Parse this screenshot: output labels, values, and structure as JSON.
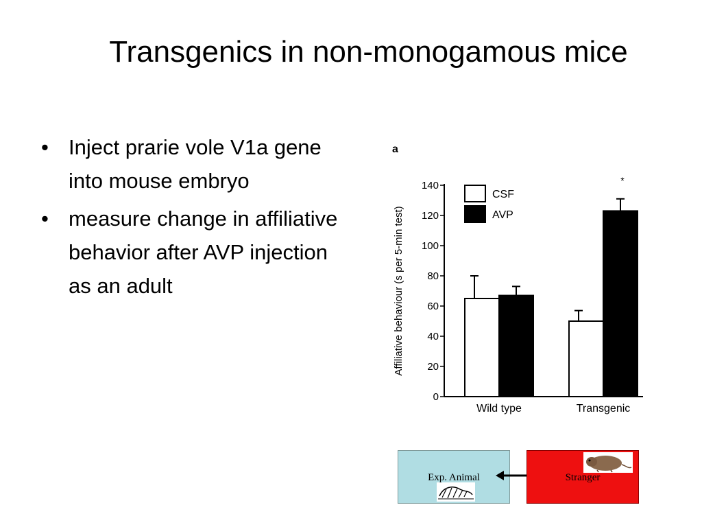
{
  "slide": {
    "title": "Transgenics in non-monogamous mice",
    "bullets": [
      "Inject prarie vole V1a gene into mouse embryo",
      "measure change in affiliative behavior after AVP injection as an adult"
    ],
    "bullet_glyph": "•"
  },
  "chart_data": {
    "type": "bar",
    "panel_label": "a",
    "categories": [
      "Wild type",
      "Transgenic"
    ],
    "series": [
      {
        "name": "CSF",
        "values": [
          65,
          50
        ],
        "errors": [
          15,
          7
        ],
        "color": "#ffffff"
      },
      {
        "name": "AVP",
        "values": [
          67,
          123
        ],
        "errors": [
          6,
          8
        ],
        "color": "#000000"
      }
    ],
    "ylabel": "Affiliative behaviour (s per 5-min test)",
    "xlabel": "",
    "ylim": [
      0,
      140
    ],
    "yticks": [
      0,
      20,
      40,
      60,
      80,
      100,
      120,
      140
    ],
    "grid": false,
    "legend_position": "top-left",
    "annotations": [
      {
        "category": "Transgenic",
        "text": "*"
      }
    ]
  },
  "diagram": {
    "exp_label": "Exp. Animal",
    "stranger_label": "Stranger",
    "exp_color": "#b0dde3",
    "stranger_color": "#ee1010",
    "icons": [
      "mouse-sketch-icon",
      "vole-icon",
      "double-arrow-icon"
    ]
  }
}
